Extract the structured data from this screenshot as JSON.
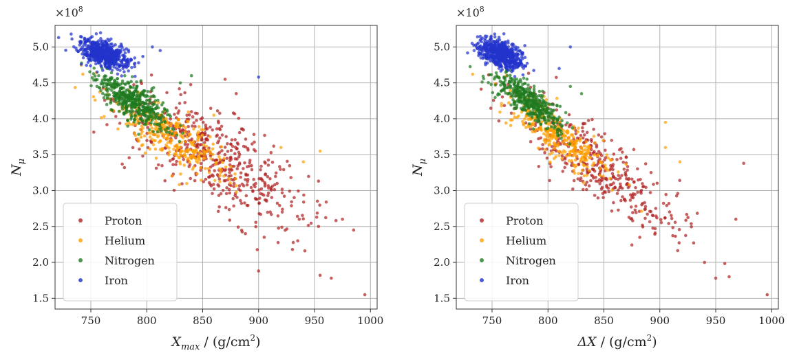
{
  "chart_data": [
    {
      "type": "scatter",
      "panel": "left",
      "title": "",
      "xlabel": {
        "symbol": "X",
        "subscript": "max",
        "unit": " / (g/cm",
        "sup": "2",
        "close": ")"
      },
      "ylabel": {
        "symbol": "N",
        "subscript": "μ"
      },
      "y_multiplier": {
        "base": "×10",
        "exp": "8"
      },
      "xlim": [
        718,
        1006
      ],
      "ylim": [
        1.35,
        5.3
      ],
      "xticks": [
        750,
        800,
        850,
        900,
        950,
        1000
      ],
      "yticks": [
        1.5,
        2.0,
        2.5,
        3.0,
        3.5,
        4.0,
        4.5,
        5.0
      ],
      "grid": true,
      "legend_position": "lower-left",
      "series": [
        {
          "name": "Proton",
          "color": "#b22222",
          "cloud": {
            "x_mean": 862,
            "y_mean": 3.45,
            "x_sd": 42,
            "y_sd": 0.48,
            "correlation": -0.78
          },
          "points": [
            [
              900,
              1.88
            ],
            [
              995,
              1.55
            ],
            [
              965,
              1.78
            ],
            [
              955,
              1.82
            ],
            [
              985,
              2.45
            ],
            [
              975,
              2.6
            ],
            [
              870,
              4.55
            ],
            [
              880,
              4.35
            ],
            [
              905,
              2.35
            ],
            [
              935,
              2.3
            ]
          ]
        },
        {
          "name": "Helium",
          "color": "#ff9f00",
          "cloud": {
            "x_mean": 822,
            "y_mean": 3.75,
            "x_sd": 27,
            "y_sd": 0.3,
            "correlation": -0.8
          },
          "points": [
            [
              920,
              3.6
            ],
            [
              940,
              3.4
            ],
            [
              955,
              3.55
            ],
            [
              860,
              4.05
            ]
          ]
        },
        {
          "name": "Nitrogen",
          "color": "#1f7a1f",
          "cloud": {
            "x_mean": 788,
            "y_mean": 4.25,
            "x_sd": 17,
            "y_sd": 0.2,
            "correlation": -0.75
          },
          "points": [
            [
              840,
              4.6
            ],
            [
              830,
              4.5
            ]
          ]
        },
        {
          "name": "Iron",
          "color": "#2233cc",
          "cloud": {
            "x_mean": 762,
            "y_mean": 4.9,
            "x_sd": 11,
            "y_sd": 0.1,
            "correlation": -0.5
          },
          "points": [
            [
              900,
              4.58
            ],
            [
              805,
              5.0
            ],
            [
              812,
              4.95
            ]
          ]
        }
      ]
    },
    {
      "type": "scatter",
      "panel": "right",
      "title": "",
      "xlabel": {
        "symbol": "ΔX",
        "subscript": "",
        "unit": " / (g/cm",
        "sup": "2",
        "close": ")"
      },
      "ylabel": {
        "symbol": "N",
        "subscript": "μ"
      },
      "y_multiplier": {
        "base": "×10",
        "exp": "8"
      },
      "xlim": [
        718,
        1006
      ],
      "ylim": [
        1.35,
        5.3
      ],
      "xticks": [
        750,
        800,
        850,
        900,
        950,
        1000
      ],
      "yticks": [
        1.5,
        2.0,
        2.5,
        3.0,
        3.5,
        4.0,
        4.5,
        5.0
      ],
      "grid": true,
      "legend_position": "lower-left",
      "series": [
        {
          "name": "Proton",
          "color": "#b22222",
          "cloud": {
            "x_mean": 845,
            "y_mean": 3.35,
            "x_sd": 36,
            "y_sd": 0.48,
            "correlation": -0.85
          },
          "points": [
            [
              996,
              1.55
            ],
            [
              962,
              1.8
            ],
            [
              950,
              1.78
            ],
            [
              975,
              3.38
            ],
            [
              968,
              2.6
            ],
            [
              940,
              2.0
            ]
          ]
        },
        {
          "name": "Helium",
          "color": "#ff9f00",
          "cloud": {
            "x_mean": 810,
            "y_mean": 3.75,
            "x_sd": 23,
            "y_sd": 0.3,
            "correlation": -0.85
          },
          "points": [
            [
              905,
              3.6
            ],
            [
              918,
              3.4
            ],
            [
              905,
              3.95
            ]
          ]
        },
        {
          "name": "Nitrogen",
          "color": "#1f7a1f",
          "cloud": {
            "x_mean": 782,
            "y_mean": 4.25,
            "x_sd": 15,
            "y_sd": 0.2,
            "correlation": -0.8
          },
          "points": [
            [
              820,
              4.45
            ],
            [
              830,
              4.35
            ]
          ]
        },
        {
          "name": "Iron",
          "color": "#2233cc",
          "cloud": {
            "x_mean": 758,
            "y_mean": 4.9,
            "x_sd": 10,
            "y_sd": 0.1,
            "correlation": -0.5
          },
          "points": [
            [
              820,
              5.0
            ],
            [
              810,
              4.7
            ]
          ]
        }
      ]
    }
  ]
}
